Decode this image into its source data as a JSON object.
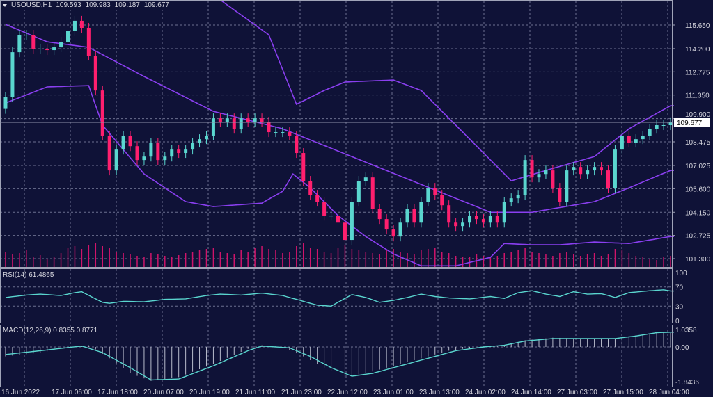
{
  "header": {
    "symbol": "USOUSD,H1",
    "open": "109.593",
    "high": "109.983",
    "low": "109.187",
    "close": "109.677"
  },
  "rsi_label": "RSI(14) 61.4865",
  "macd_label": "MACD(12,26,9) 0.8355 0.8771",
  "current_price_label": "109.677",
  "colors": {
    "background": "#0f1237",
    "bull": "#5ad6cf",
    "bear": "#ff1f6e",
    "band": "#8a3ff0",
    "rsi": "#5ad6cf",
    "volume": "#d0146a",
    "grid": "#6c7090"
  },
  "chart_data": [
    {
      "type": "candlestick",
      "title": "USOUSD,H1",
      "y_ticks": [
        "115.650",
        "114.200",
        "112.775",
        "111.350",
        "109.900",
        "108.475",
        "107.025",
        "105.600",
        "104.150",
        "102.725",
        "101.300"
      ],
      "ylim": [
        101.3,
        115.65
      ],
      "x_ticks": [
        "16 Jun 2022",
        "17 Jun 06:00",
        "17 Jun 18:00",
        "20 Jun 07:00",
        "20 Jun 19:00",
        "21 Jun 11:00",
        "21 Jun 23:00",
        "22 Jun 12:00",
        "23 Jun 01:00",
        "23 Jun 13:00",
        "24 Jun 02:00",
        "24 Jun 14:00",
        "27 Jun 03:00",
        "27 Jun 15:00",
        "28 Jun 04:00"
      ],
      "grid": true,
      "close": [
        111.21,
        113.98,
        115.05,
        115.05,
        114.2,
        114.2,
        114.11,
        114.28,
        114.62,
        115.27,
        115.91,
        115.48,
        113.77,
        111.63,
        108.86,
        106.72,
        108.0,
        108.86,
        108.21,
        107.36,
        107.57,
        108.43,
        107.36,
        107.57,
        108.0,
        107.79,
        108.0,
        108.43,
        108.64,
        108.86,
        109.92,
        109.71,
        109.92,
        109.28,
        109.92,
        109.71,
        109.92,
        109.71,
        109.07,
        109.07,
        109.07,
        108.86,
        107.79,
        106.08,
        105.22,
        104.8,
        103.94,
        103.94,
        103.51,
        102.45,
        104.8,
        106.08,
        106.29,
        104.37,
        103.73,
        103.09,
        102.66,
        103.51,
        104.37,
        103.51,
        104.8,
        105.65,
        105.22,
        104.58,
        103.51,
        103.3,
        103.51,
        103.94,
        103.73,
        103.51,
        103.94,
        103.51,
        104.8,
        105.01,
        105.22,
        107.36,
        106.29,
        106.5,
        106.72,
        105.65,
        104.8,
        106.72,
        106.93,
        106.5,
        106.72,
        106.93,
        106.72,
        105.65,
        108.0,
        108.86,
        108.43,
        108.64,
        108.86,
        109.28,
        109.5,
        109.5,
        109.677
      ],
      "bollinger": {
        "upper": [
          [
            0,
            118.5
          ],
          [
            31,
            117.19
          ],
          [
            38,
            115.05
          ],
          [
            42,
            110.78
          ],
          [
            46,
            111.63
          ],
          [
            49,
            112.15
          ],
          [
            56,
            112.27
          ],
          [
            60,
            111.63
          ],
          [
            65,
            109.5
          ],
          [
            70,
            107.36
          ],
          [
            73,
            106.08
          ],
          [
            78,
            106.72
          ],
          [
            85,
            107.57
          ],
          [
            90,
            109.28
          ],
          [
            96,
            110.69
          ]
        ],
        "middle": [
          [
            0,
            115.69
          ],
          [
            6,
            114.62
          ],
          [
            12,
            114.28
          ],
          [
            20,
            112.49
          ],
          [
            30,
            110.35
          ],
          [
            40,
            109.28
          ],
          [
            50,
            107.57
          ],
          [
            60,
            105.86
          ],
          [
            70,
            104.15
          ],
          [
            76,
            104.15
          ],
          [
            85,
            104.8
          ],
          [
            90,
            105.65
          ],
          [
            96,
            106.72
          ]
        ],
        "lower": [
          [
            0,
            110.86
          ],
          [
            6,
            111.85
          ],
          [
            12,
            111.93
          ],
          [
            14,
            109.5
          ],
          [
            20,
            106.5
          ],
          [
            26,
            104.8
          ],
          [
            30,
            104.5
          ],
          [
            37,
            104.71
          ],
          [
            40,
            105.44
          ],
          [
            41.5,
            106.5
          ],
          [
            44,
            105.65
          ],
          [
            48,
            103.94
          ],
          [
            52,
            102.66
          ],
          [
            56,
            101.59
          ],
          [
            60,
            100.86
          ],
          [
            65,
            100.86
          ],
          [
            70,
            101.38
          ],
          [
            72,
            102.23
          ],
          [
            76,
            102.15
          ],
          [
            80,
            102.15
          ],
          [
            85,
            102.32
          ],
          [
            90,
            102.23
          ],
          [
            96,
            102.66
          ]
        ]
      },
      "volume": [
        22,
        18,
        20,
        25,
        15,
        17,
        12,
        14,
        20,
        28,
        30,
        26,
        32,
        35,
        30,
        28,
        22,
        20,
        18,
        16,
        15,
        20,
        18,
        16,
        14,
        17,
        20,
        22,
        24,
        26,
        28,
        22,
        20,
        18,
        25,
        22,
        28,
        30,
        26,
        24,
        20,
        22,
        30,
        34,
        28,
        26,
        22,
        20,
        28,
        32,
        26,
        24,
        22,
        20,
        18,
        24,
        26,
        22,
        20,
        18,
        24,
        26,
        28,
        22,
        20,
        16,
        14,
        15,
        18,
        16,
        14,
        16,
        20,
        22,
        24,
        28,
        22,
        20,
        18,
        16,
        20,
        22,
        18,
        16,
        18,
        20,
        16,
        18,
        26,
        24,
        20,
        16,
        14,
        12,
        10,
        14,
        16
      ]
    },
    {
      "type": "line",
      "title": "RSI(14) 61.4865",
      "y_ticks": [
        "100",
        "70",
        "30",
        "0"
      ],
      "ylim": [
        0,
        100
      ],
      "values": [
        [
          0,
          48
        ],
        [
          3,
          53
        ],
        [
          5,
          55
        ],
        [
          8,
          52
        ],
        [
          10,
          58
        ],
        [
          11,
          60
        ],
        [
          13,
          45
        ],
        [
          14,
          38
        ],
        [
          15,
          36
        ],
        [
          17,
          40
        ],
        [
          20,
          39
        ],
        [
          23,
          44
        ],
        [
          26,
          45
        ],
        [
          29,
          52
        ],
        [
          31,
          55
        ],
        [
          34,
          53
        ],
        [
          37,
          57
        ],
        [
          40,
          52
        ],
        [
          43,
          40
        ],
        [
          45,
          32
        ],
        [
          47,
          30
        ],
        [
          50,
          54
        ],
        [
          52,
          48
        ],
        [
          54,
          38
        ],
        [
          56,
          42
        ],
        [
          58,
          48
        ],
        [
          60,
          55
        ],
        [
          62,
          50
        ],
        [
          64,
          47
        ],
        [
          67,
          45
        ],
        [
          70,
          50
        ],
        [
          72,
          46
        ],
        [
          74,
          58
        ],
        [
          76,
          62
        ],
        [
          78,
          55
        ],
        [
          80,
          50
        ],
        [
          82,
          60
        ],
        [
          84,
          55
        ],
        [
          86,
          56
        ],
        [
          88,
          48
        ],
        [
          90,
          58
        ],
        [
          93,
          62
        ],
        [
          95,
          64
        ],
        [
          96,
          61.49
        ]
      ]
    },
    {
      "type": "bar",
      "title": "MACD(12,26,9) 0.8355 0.8771",
      "y_ticks": [
        "1.0358",
        "0.00",
        "-1.8436"
      ],
      "ylim": [
        -1.8436,
        1.0358
      ],
      "macd": [
        [
          0,
          -0.5
        ],
        [
          5,
          -0.3
        ],
        [
          10,
          0.05
        ],
        [
          12,
          0.1
        ],
        [
          15,
          -0.6
        ],
        [
          18,
          -1.4
        ],
        [
          21,
          -1.8
        ],
        [
          25,
          -1.6
        ],
        [
          30,
          -0.9
        ],
        [
          35,
          -0.1
        ],
        [
          37,
          0.1
        ],
        [
          40,
          0.0
        ],
        [
          43,
          -0.5
        ],
        [
          46,
          -1.1
        ],
        [
          49,
          -1.6
        ],
        [
          52,
          -1.4
        ],
        [
          56,
          -1.0
        ],
        [
          60,
          -0.6
        ],
        [
          64,
          -0.2
        ],
        [
          68,
          0.0
        ],
        [
          72,
          0.1
        ],
        [
          75,
          0.4
        ],
        [
          79,
          0.55
        ],
        [
          84,
          0.5
        ],
        [
          88,
          0.5
        ],
        [
          91,
          0.7
        ],
        [
          94,
          0.85
        ],
        [
          96,
          0.8355
        ]
      ],
      "signal": [
        [
          0,
          -0.4
        ],
        [
          5,
          -0.2
        ],
        [
          11,
          0.05
        ],
        [
          14,
          -0.3
        ],
        [
          18,
          -1.1
        ],
        [
          21,
          -1.75
        ],
        [
          25,
          -1.7
        ],
        [
          30,
          -1.0
        ],
        [
          35,
          -0.2
        ],
        [
          37,
          0.05
        ],
        [
          41,
          -0.05
        ],
        [
          44,
          -0.5
        ],
        [
          47,
          -1.1
        ],
        [
          50,
          -1.55
        ],
        [
          53,
          -1.4
        ],
        [
          57,
          -1.0
        ],
        [
          61,
          -0.6
        ],
        [
          65,
          -0.2
        ],
        [
          69,
          0.0
        ],
        [
          72,
          0.1
        ],
        [
          75,
          0.35
        ],
        [
          79,
          0.5
        ],
        [
          84,
          0.5
        ],
        [
          88,
          0.5
        ],
        [
          91,
          0.65
        ],
        [
          94,
          0.85
        ],
        [
          96,
          0.8771
        ]
      ]
    }
  ]
}
